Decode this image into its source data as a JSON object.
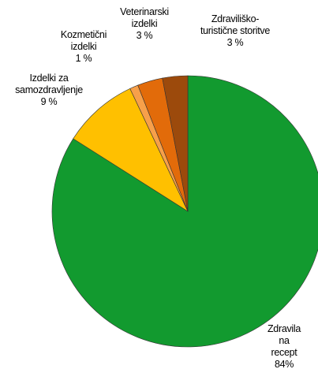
{
  "chart_data": {
    "type": "pie",
    "categories": [
      "Zdravila na\nrecept",
      "Izdelki za\nsamozdravljenje",
      "Kozmetični\nizdelki",
      "Veterinarski\nizdelki",
      "Zdraviliško-\nturistične storitve"
    ],
    "values": [
      84,
      9,
      1,
      3,
      3
    ],
    "value_labels": [
      "84%",
      "9 %",
      "1 %",
      "3 %",
      "3 %"
    ],
    "colors": [
      "#129a2f",
      "#ffc000",
      "#f7a04a",
      "#e26b0a",
      "#9c4a0c"
    ]
  }
}
